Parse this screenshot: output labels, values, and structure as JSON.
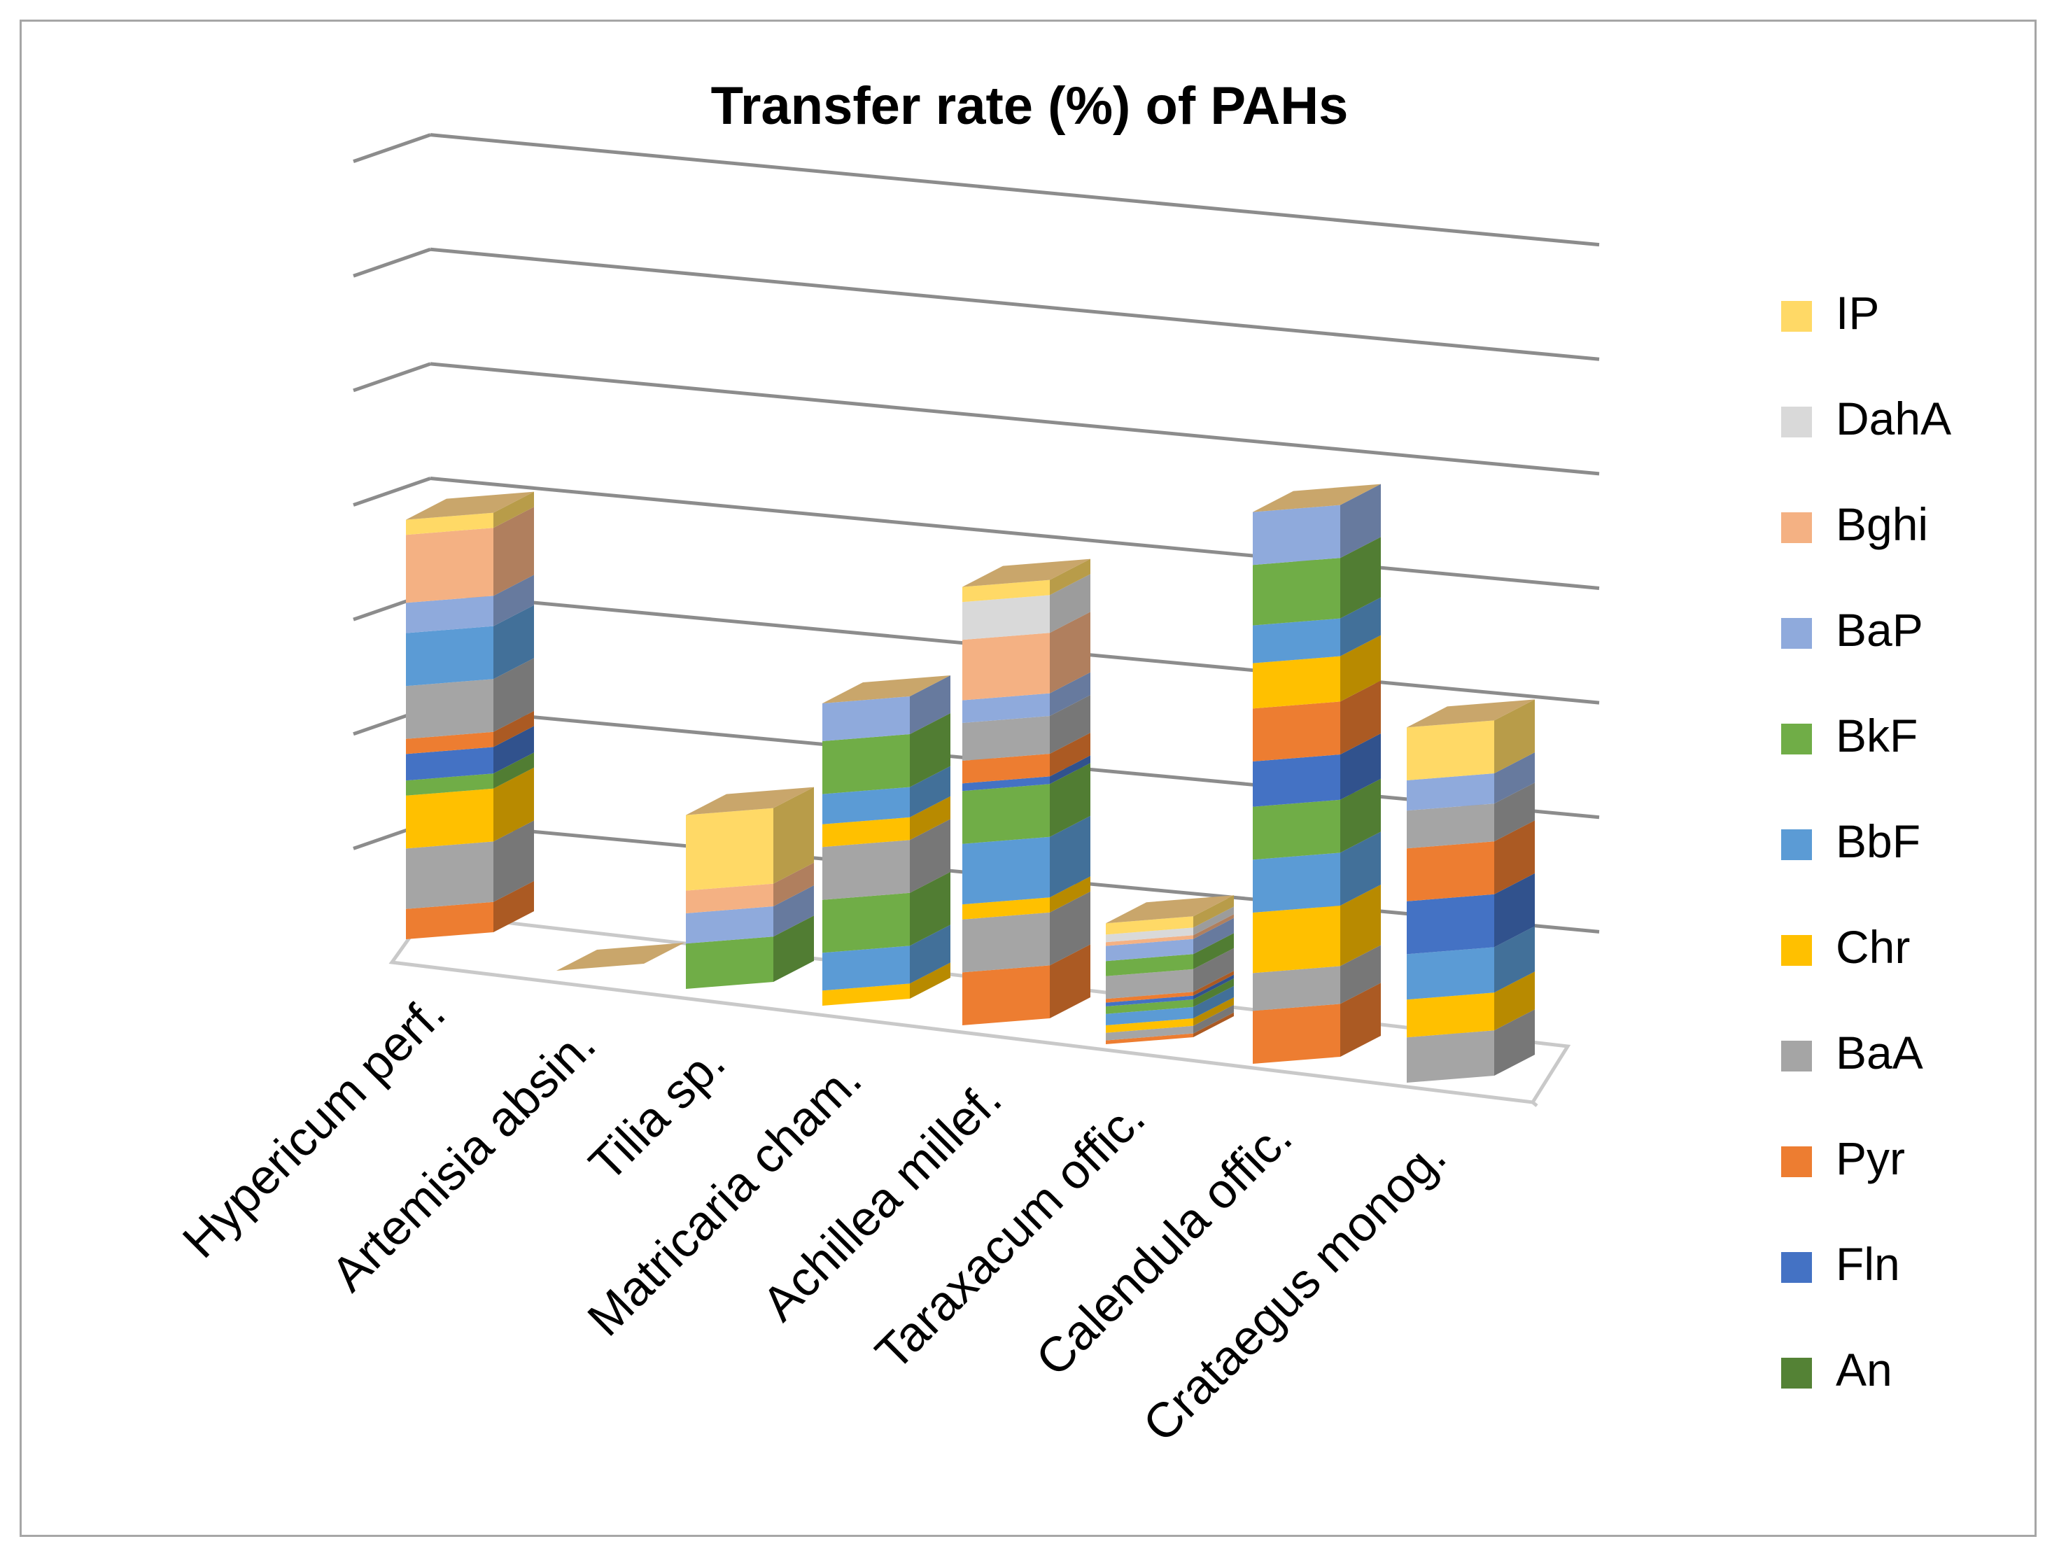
{
  "chart_data": {
    "type": "bar",
    "stacked": true,
    "three_d": true,
    "title": "Transfer rate (%) of PAHs",
    "xlabel": "",
    "ylabel": "",
    "ylim": [
      0,
      70
    ],
    "y_tick_step": 10,
    "grid": true,
    "legend_position": "right",
    "categories": [
      "Hypericum perf.",
      "Artemisia absin.",
      "Tilia sp.",
      "Matricaria cham.",
      "Achillea millef.",
      "Taraxacum offic.",
      "Calendula offic.",
      "Crataegus monog."
    ],
    "series": [
      {
        "name": "An",
        "color": "#548235",
        "values": [
          0,
          0,
          0,
          0,
          0,
          0,
          0,
          0
        ]
      },
      {
        "name": "Fln",
        "color": "#4472c4",
        "values": [
          0,
          0,
          0,
          0,
          0,
          0,
          0,
          0
        ]
      },
      {
        "name": "Pyr",
        "color": "#ed7d31",
        "values": [
          4,
          0,
          0,
          0,
          7,
          0.5,
          7,
          0
        ]
      },
      {
        "name": "BaA",
        "color": "#a5a5a5",
        "values": [
          8,
          0,
          0,
          0,
          7,
          1,
          5,
          6
        ]
      },
      {
        "name": "Chr",
        "color": "#ffc000",
        "values": [
          7,
          0,
          0,
          2,
          2,
          1,
          8,
          5
        ]
      },
      {
        "name": "BbF",
        "color": "#5b9bd5",
        "values": [
          0,
          0,
          0,
          5,
          8,
          1.5,
          7,
          6
        ]
      },
      {
        "name": "BkF",
        "color": "#70ad47",
        "values": [
          2,
          0,
          6,
          7,
          7,
          1,
          7,
          0
        ]
      },
      {
        "name": "Fln",
        "color": "#4472c4",
        "values": [
          3.5,
          0,
          0,
          0,
          1,
          0.5,
          6,
          7
        ]
      },
      {
        "name": "Pyr",
        "color": "#ed7d31",
        "values": [
          2,
          0,
          0,
          0,
          3,
          0.5,
          7,
          7
        ]
      },
      {
        "name": "BaA",
        "color": "#a5a5a5",
        "values": [
          7,
          0,
          0,
          7,
          5,
          3,
          0,
          5
        ]
      },
      {
        "name": "Chr",
        "color": "#ffc000",
        "values": [
          0,
          0,
          0,
          3,
          0,
          0,
          6,
          0
        ]
      },
      {
        "name": "BbF",
        "color": "#5b9bd5",
        "values": [
          7,
          0,
          0,
          4,
          0,
          0,
          5,
          0
        ]
      },
      {
        "name": "BkF",
        "color": "#70ad47",
        "values": [
          0,
          0,
          0,
          7,
          0,
          2,
          8,
          0
        ]
      },
      {
        "name": "BaP",
        "color": "#8faadc",
        "values": [
          4,
          0,
          4,
          5,
          3,
          2,
          7,
          4
        ]
      },
      {
        "name": "Bghi",
        "color": "#f4b183",
        "values": [
          9,
          0,
          3,
          0,
          8,
          0.5,
          0,
          0
        ]
      },
      {
        "name": "DahA",
        "color": "#d9d9d9",
        "values": [
          0,
          0,
          0,
          0,
          5,
          1,
          0,
          0
        ]
      },
      {
        "name": "IP",
        "color": "#ffd966",
        "values": [
          2,
          0,
          10,
          0,
          2,
          1.5,
          0,
          7
        ]
      }
    ],
    "legend": [
      "IP",
      "DahA",
      "Bghi",
      "BaP",
      "BkF",
      "BbF",
      "Chr",
      "BaA",
      "Pyr",
      "Fln",
      "An"
    ],
    "legend_colors": [
      "#ffd966",
      "#d9d9d9",
      "#f4b183",
      "#8faadc",
      "#70ad47",
      "#5b9bd5",
      "#ffc000",
      "#a5a5a5",
      "#ed7d31",
      "#4472c4",
      "#548235"
    ],
    "top_cap_color": "#c9a66b"
  }
}
